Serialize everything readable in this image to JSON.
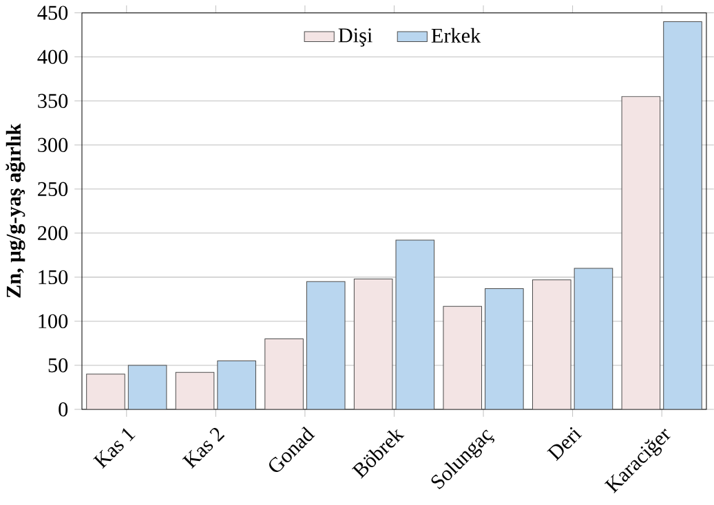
{
  "chart_data": {
    "type": "bar",
    "ylabel": "Zn, µg/g-yaş ağırlık",
    "categories": [
      "Kas 1",
      "Kas 2",
      "Gonad",
      "Böbrek",
      "Solungaç",
      "Deri",
      "Karaciğer"
    ],
    "series": [
      {
        "name": "Dişi",
        "color": "#f3e4e4",
        "values": [
          40,
          42,
          80,
          148,
          117,
          147,
          355
        ]
      },
      {
        "name": "Erkek",
        "color": "#b9d6ef",
        "values": [
          50,
          55,
          145,
          192,
          137,
          160,
          440
        ]
      }
    ],
    "ylim": [
      0,
      450
    ],
    "yticks": [
      0,
      50,
      100,
      150,
      200,
      250,
      300,
      350,
      400,
      450
    ],
    "grid": "y",
    "legend": "top"
  }
}
